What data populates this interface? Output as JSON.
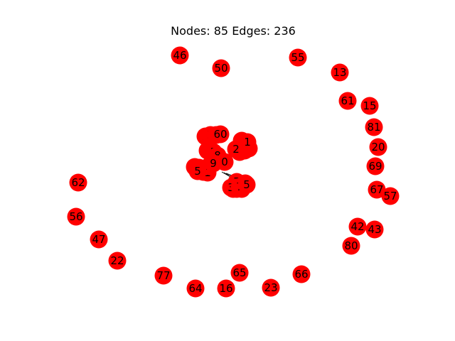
{
  "title": "Nodes: 85 Edges: 236",
  "node_color": "#ff0000",
  "edge_color": "#000000",
  "label_color": "#000000",
  "outer_nodes": [
    "46",
    "50",
    "55",
    "13",
    "61",
    "15",
    "81",
    "20",
    "69",
    "67",
    "57",
    "42",
    "43",
    "80",
    "66",
    "23",
    "16",
    "65",
    "64",
    "77",
    "22",
    "47",
    "56",
    "62"
  ],
  "cluster_left_labels": [
    "5",
    "3",
    "2",
    "60",
    "4",
    "1",
    "8",
    "0",
    "6",
    "9",
    "7",
    "1",
    "2",
    "5",
    "9"
  ],
  "cluster_right_labels": [
    "1",
    "2",
    "4",
    "3",
    "3",
    "1",
    "1",
    "1",
    "2"
  ],
  "cluster_bottom_labels": [
    "7",
    "3",
    "5",
    "3",
    "2",
    "3",
    "4",
    "7",
    "5"
  ]
}
